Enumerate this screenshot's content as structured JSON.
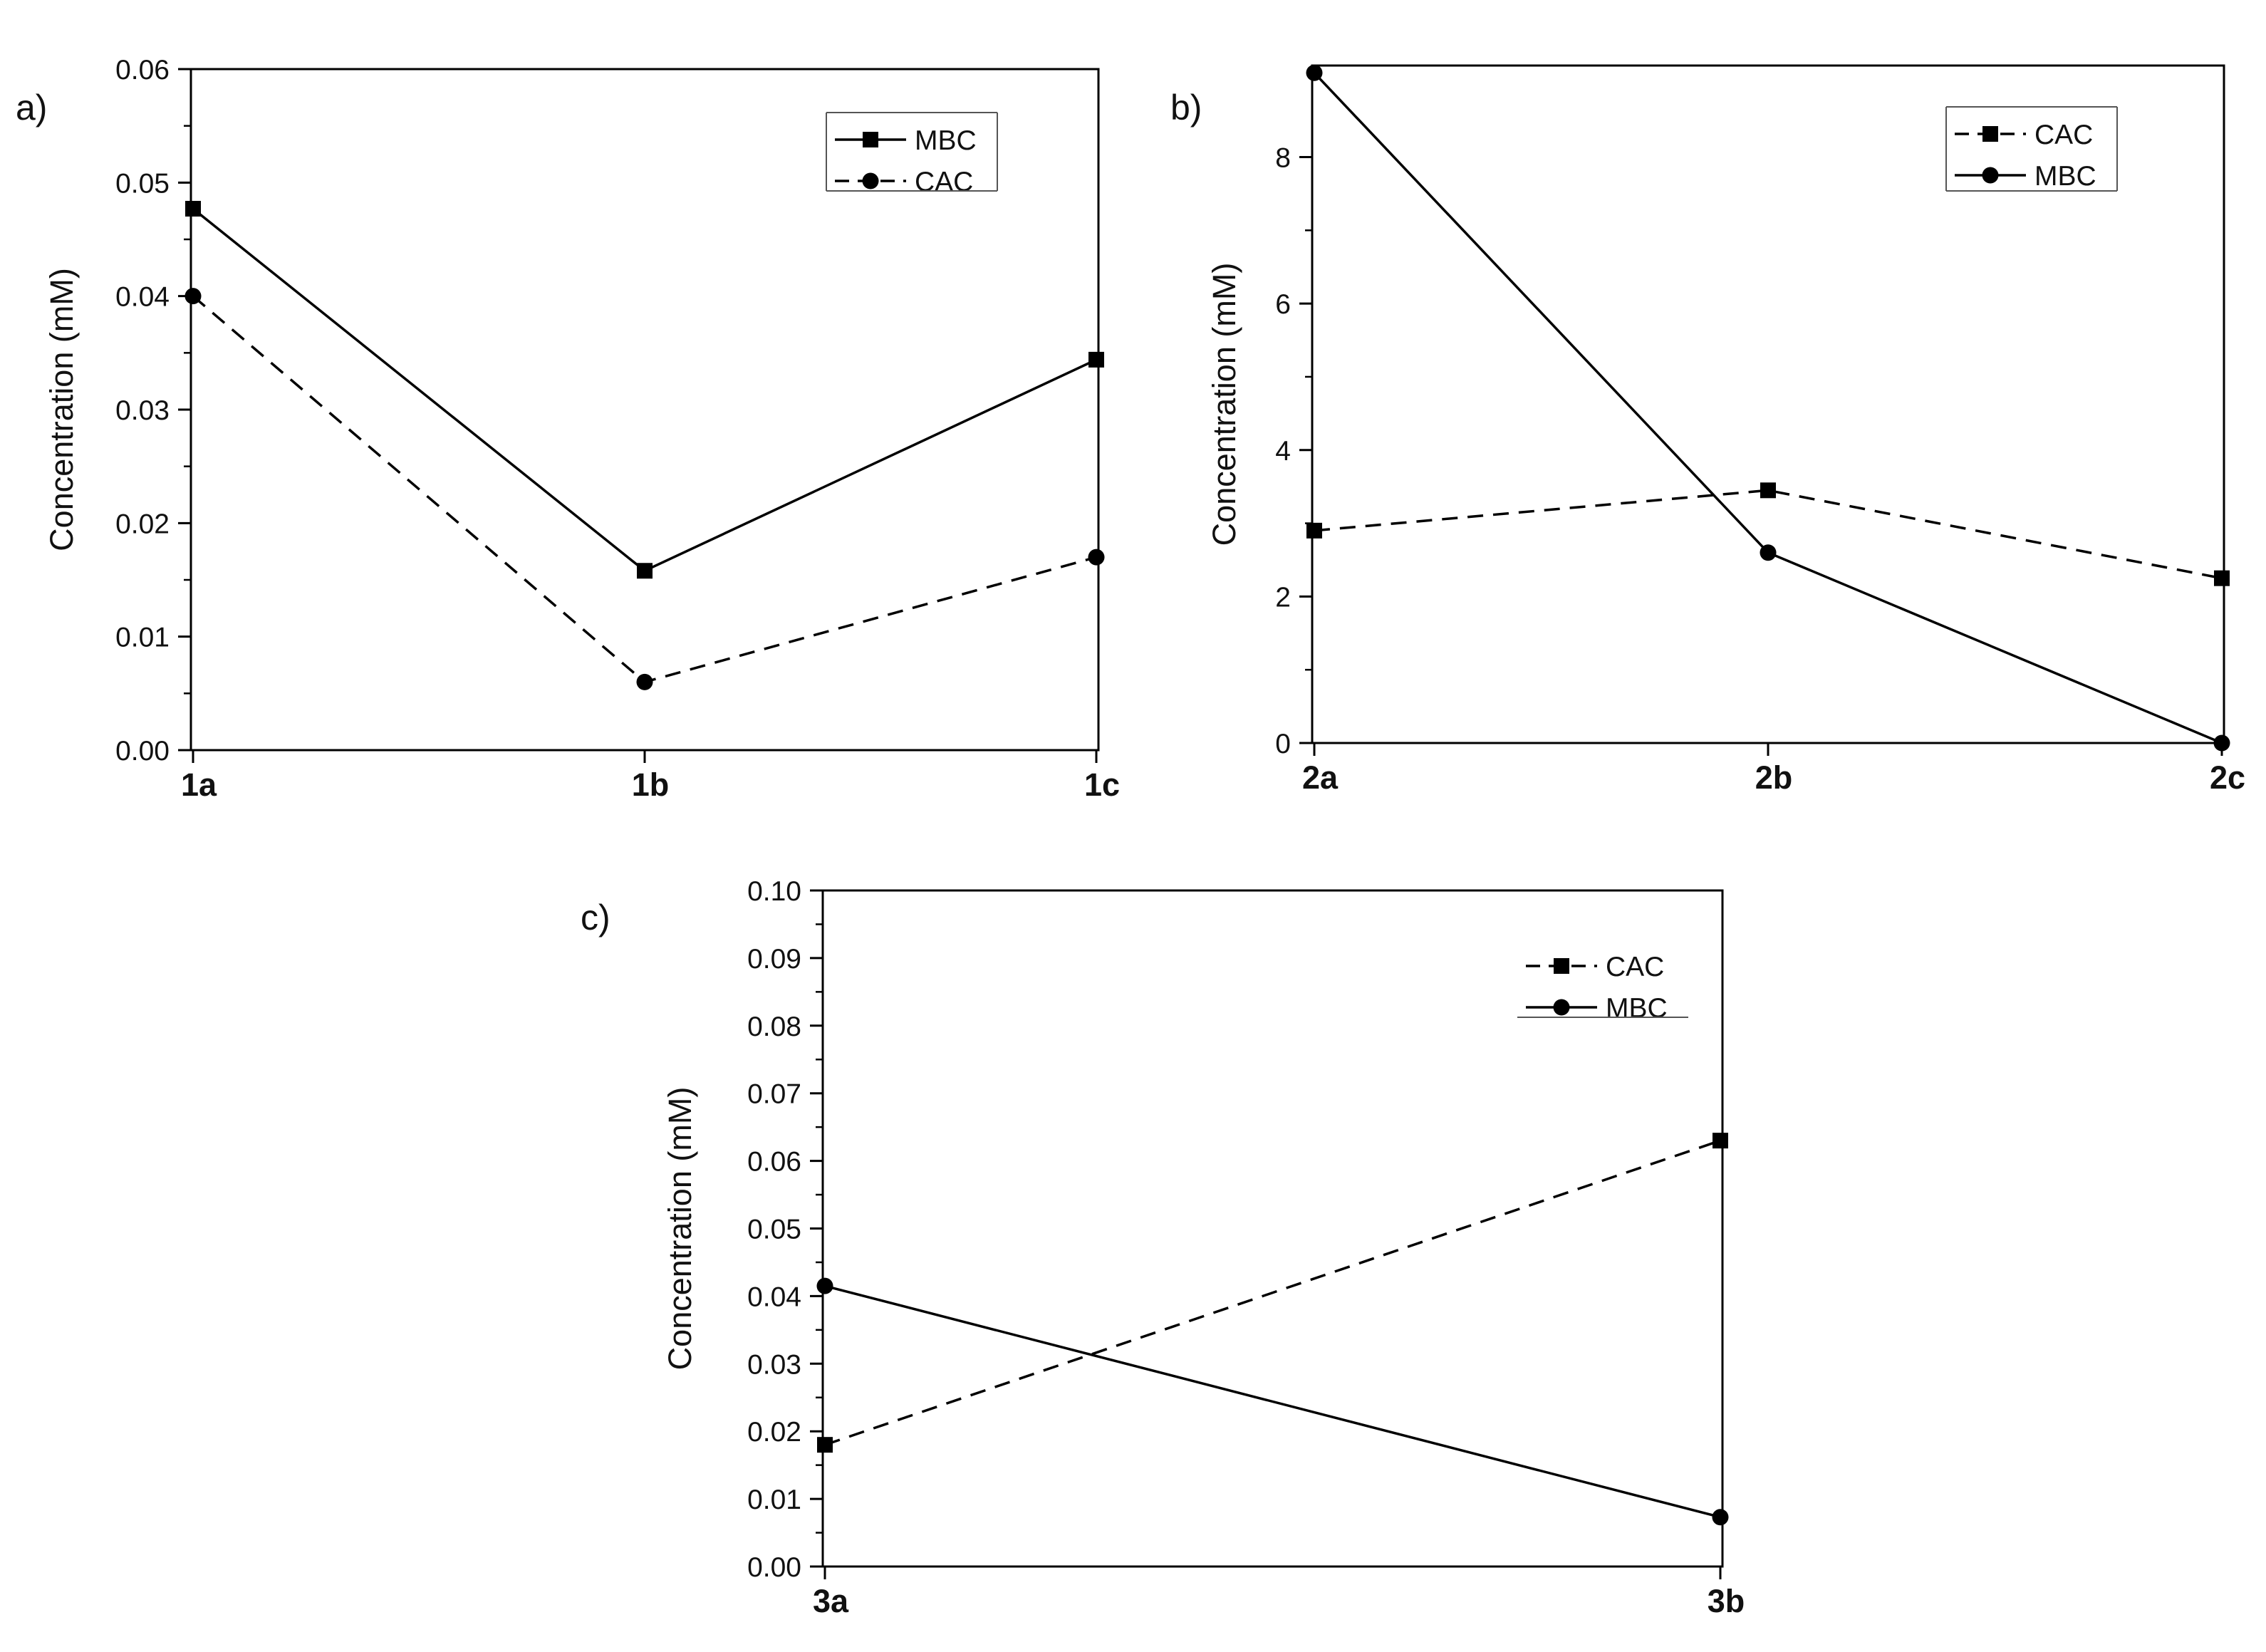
{
  "chart_data": [
    {
      "type": "line",
      "panel_label": "a)",
      "title": "",
      "xlabel": "",
      "ylabel": "Concentration (mM)",
      "categories": [
        "1a",
        "1b",
        "1c"
      ],
      "ylim": [
        0,
        0.06
      ],
      "yticks": [
        "0.00",
        "0.01",
        "0.02",
        "0.03",
        "0.04",
        "0.05",
        "0.06"
      ],
      "grid": false,
      "legend_position": "top-right",
      "series": [
        {
          "name": "MBC",
          "values": [
            0.0477,
            0.0158,
            0.0344
          ],
          "line": "solid",
          "marker": "square",
          "color": "#000000"
        },
        {
          "name": "CAC",
          "values": [
            0.04,
            0.006,
            0.017
          ],
          "line": "dashed",
          "marker": "circle",
          "color": "#000000"
        }
      ]
    },
    {
      "type": "line",
      "panel_label": "b)",
      "title": "",
      "xlabel": "",
      "ylabel": "Concentration (mM)",
      "categories": [
        "2a",
        "2b",
        "2c"
      ],
      "ylim": [
        0,
        9.25
      ],
      "yticks": [
        "0",
        "2",
        "4",
        "6",
        "8"
      ],
      "grid": false,
      "legend_position": "top-right",
      "series": [
        {
          "name": "CAC",
          "values": [
            2.9,
            3.45,
            2.25
          ],
          "line": "dashed",
          "marker": "square",
          "color": "#000000"
        },
        {
          "name": "MBC",
          "values": [
            9.15,
            2.6,
            0.0
          ],
          "line": "solid",
          "marker": "circle",
          "color": "#000000"
        }
      ]
    },
    {
      "type": "line",
      "panel_label": "c)",
      "title": "",
      "xlabel": "",
      "ylabel": "Concentration (mM)",
      "categories": [
        "3a",
        "3b"
      ],
      "ylim": [
        0,
        0.1
      ],
      "yticks": [
        "0.00",
        "0.01",
        "0.02",
        "0.03",
        "0.04",
        "0.05",
        "0.06",
        "0.07",
        "0.08",
        "0.09",
        "0.10"
      ],
      "grid": false,
      "legend_position": "top-right",
      "series": [
        {
          "name": "CAC",
          "values": [
            0.018,
            0.063
          ],
          "line": "dashed",
          "marker": "square",
          "color": "#000000"
        },
        {
          "name": "MBC",
          "values": [
            0.0415,
            0.0073
          ],
          "line": "solid",
          "marker": "circle",
          "color": "#000000"
        }
      ]
    }
  ]
}
